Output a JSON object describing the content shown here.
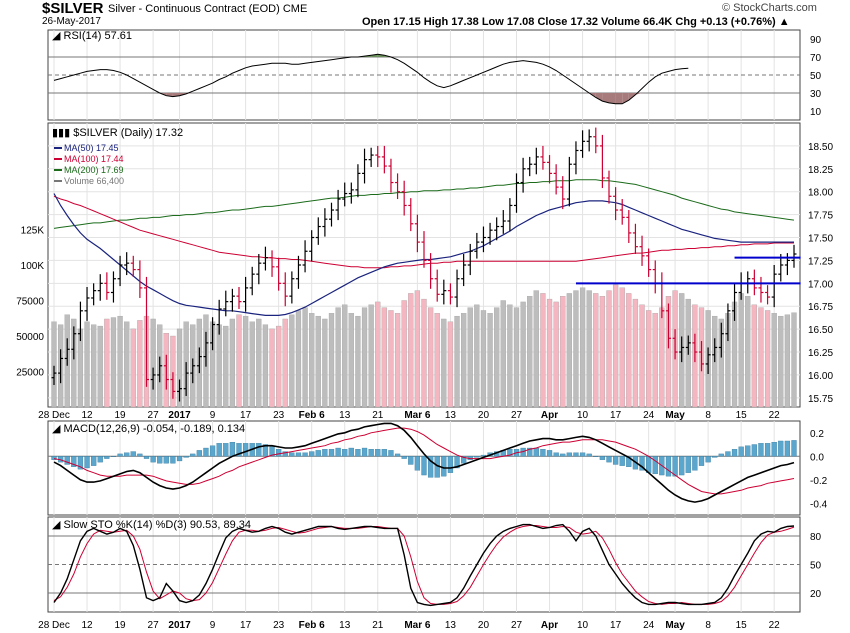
{
  "header": {
    "symbol": "$SILVER",
    "description": "Silver - Continuous Contract (EOD) CME",
    "date": "26-May-2017",
    "ohlc": "Open 17.15  High 17.38  Low 17.08  Close 17.32  Volume 66.4K  Chg +0.13 (+0.76%) ▲",
    "watermark": "© StockCharts.com"
  },
  "colors": {
    "up": "#000000",
    "down": "#cc0033",
    "ma50": "#1a237e",
    "ma100": "#cc0033",
    "ma200": "#1b6b1b",
    "vol_up": "#bdbdbd",
    "vol_down": "#f4b6c0",
    "macd_hist": "#5aa6cc",
    "rsi_fill_over": "#6b8f5a",
    "rsi_fill_under": "#a77b7b",
    "trendline": "#0000cc"
  },
  "chart_data": [
    {
      "panel": "rsi",
      "type": "line",
      "legend": "RSI(14) 57.61",
      "ylim": [
        0,
        100
      ],
      "y_ticks": [
        90,
        70,
        50,
        30,
        10
      ],
      "levels": [
        70,
        50,
        30
      ],
      "values": [
        44,
        46,
        48,
        50,
        52,
        54,
        55,
        56,
        56,
        55,
        53,
        50,
        46,
        42,
        38,
        34,
        30,
        27,
        26,
        27,
        29,
        32,
        35,
        38,
        41,
        45,
        48,
        52,
        55,
        58,
        60,
        61,
        62,
        63,
        63,
        63,
        62,
        62,
        63,
        64,
        65,
        66,
        67,
        68,
        69,
        70,
        70,
        71,
        72,
        73,
        72,
        70,
        67,
        63,
        58,
        53,
        47,
        42,
        38,
        36,
        38,
        41,
        44,
        47,
        50,
        53,
        56,
        59,
        62,
        64,
        65,
        66,
        65,
        64,
        62,
        59,
        55,
        50,
        45,
        40,
        35,
        30,
        25,
        21,
        19,
        18,
        18,
        22,
        28,
        35,
        42,
        48,
        52,
        54,
        56,
        57,
        57.61
      ]
    },
    {
      "panel": "price",
      "type": "ohlc",
      "title": "$SILVER (Daily) 17.32",
      "legend": [
        "MA(50) 17.45",
        "MA(100) 17.44",
        "MA(200) 17.69",
        "Volume 66,400"
      ],
      "ylim": [
        15.65,
        18.75
      ],
      "y_ticks": [
        18.5,
        18.25,
        18.0,
        17.75,
        17.5,
        17.25,
        17.0,
        16.75,
        16.5,
        16.25,
        16.0,
        15.75
      ],
      "x_labels": [
        "28 Dec",
        "12",
        "19",
        "27",
        "2017",
        "9",
        "17",
        "23",
        "Feb 6",
        "13",
        "21",
        "Mar 6",
        "13",
        "20",
        "27",
        "Apr",
        "10",
        "17",
        "24",
        "May",
        "8",
        "15",
        "22"
      ],
      "x_label_index": [
        0,
        5,
        10,
        15,
        19,
        24,
        29,
        34,
        39,
        44,
        49,
        55,
        60,
        65,
        70,
        75,
        80,
        85,
        90,
        94,
        99,
        104,
        109
      ],
      "close": [
        16.02,
        16.18,
        16.28,
        16.45,
        16.7,
        16.84,
        16.92,
        17.0,
        16.9,
        17.05,
        17.2,
        17.22,
        17.15,
        16.95,
        15.95,
        16.0,
        16.1,
        15.95,
        15.82,
        15.85,
        16.02,
        16.1,
        16.2,
        16.35,
        16.55,
        16.72,
        16.8,
        16.86,
        16.8,
        16.95,
        17.1,
        17.22,
        17.28,
        17.18,
        17.0,
        16.86,
        17.05,
        17.2,
        17.35,
        17.5,
        17.62,
        17.7,
        17.8,
        17.92,
        17.98,
        18.02,
        18.2,
        18.35,
        18.4,
        18.38,
        18.28,
        18.1,
        18.0,
        17.85,
        17.65,
        17.45,
        17.25,
        17.05,
        16.88,
        16.92,
        16.85,
        17.05,
        17.2,
        17.35,
        17.45,
        17.5,
        17.58,
        17.62,
        17.68,
        17.85,
        18.1,
        18.25,
        18.3,
        18.38,
        18.32,
        18.2,
        18.05,
        17.92,
        18.3,
        18.45,
        18.55,
        18.6,
        18.5,
        18.15,
        17.95,
        17.8,
        17.72,
        17.55,
        17.4,
        17.3,
        17.15,
        17.0,
        16.7,
        16.4,
        16.25,
        16.3,
        16.35,
        16.25,
        16.12,
        16.22,
        16.3,
        16.45,
        16.7,
        16.9,
        17.0,
        17.05,
        16.95,
        16.9,
        16.85,
        17.1,
        17.2,
        17.25,
        17.32
      ],
      "ma50": [
        17.98,
        17.85,
        17.74,
        17.64,
        17.55,
        17.48,
        17.43,
        17.38,
        17.32,
        17.26,
        17.2,
        17.14,
        17.08,
        17.02,
        16.97,
        16.93,
        16.89,
        16.85,
        16.81,
        16.78,
        16.76,
        16.75,
        16.74,
        16.73,
        16.72,
        16.71,
        16.7,
        16.7,
        16.69,
        16.68,
        16.67,
        16.66,
        16.65,
        16.65,
        16.65,
        16.66,
        16.68,
        16.71,
        16.74,
        16.78,
        16.82,
        16.86,
        16.9,
        16.94,
        16.98,
        17.02,
        17.06,
        17.09,
        17.12,
        17.15,
        17.18,
        17.2,
        17.22,
        17.23,
        17.24,
        17.25,
        17.26,
        17.26,
        17.27,
        17.28,
        17.29,
        17.31,
        17.33,
        17.35,
        17.38,
        17.41,
        17.45,
        17.49,
        17.53,
        17.57,
        17.62,
        17.66,
        17.7,
        17.74,
        17.77,
        17.8,
        17.82,
        17.84,
        17.86,
        17.88,
        17.89,
        17.9,
        17.9,
        17.9,
        17.89,
        17.88,
        17.86,
        17.83,
        17.8,
        17.77,
        17.74,
        17.71,
        17.68,
        17.65,
        17.62,
        17.59,
        17.57,
        17.55,
        17.53,
        17.51,
        17.49,
        17.48,
        17.47,
        17.46,
        17.45,
        17.45,
        17.45,
        17.45,
        17.45,
        17.45,
        17.45,
        17.45,
        17.45
      ],
      "ma100": [
        17.95,
        17.92,
        17.9,
        17.87,
        17.85,
        17.82,
        17.79,
        17.76,
        17.73,
        17.7,
        17.67,
        17.64,
        17.61,
        17.58,
        17.56,
        17.54,
        17.52,
        17.5,
        17.48,
        17.46,
        17.44,
        17.42,
        17.4,
        17.38,
        17.36,
        17.34,
        17.33,
        17.32,
        17.31,
        17.3,
        17.29,
        17.29,
        17.28,
        17.28,
        17.27,
        17.27,
        17.26,
        17.26,
        17.25,
        17.24,
        17.23,
        17.22,
        17.21,
        17.2,
        17.19,
        17.18,
        17.18,
        17.17,
        17.17,
        17.17,
        17.17,
        17.18,
        17.18,
        17.19,
        17.19,
        17.2,
        17.21,
        17.22,
        17.22,
        17.23,
        17.23,
        17.24,
        17.24,
        17.24,
        17.24,
        17.24,
        17.24,
        17.24,
        17.24,
        17.24,
        17.24,
        17.24,
        17.24,
        17.24,
        17.24,
        17.24,
        17.24,
        17.24,
        17.24,
        17.24,
        17.25,
        17.26,
        17.27,
        17.28,
        17.29,
        17.3,
        17.31,
        17.32,
        17.33,
        17.33,
        17.34,
        17.35,
        17.36,
        17.36,
        17.37,
        17.37,
        17.38,
        17.38,
        17.39,
        17.39,
        17.4,
        17.4,
        17.41,
        17.41,
        17.42,
        17.42,
        17.43,
        17.43,
        17.43,
        17.44,
        17.44,
        17.44,
        17.44
      ],
      "ma200": [
        17.6,
        17.61,
        17.62,
        17.63,
        17.64,
        17.65,
        17.66,
        17.66,
        17.67,
        17.68,
        17.69,
        17.69,
        17.7,
        17.71,
        17.71,
        17.72,
        17.72,
        17.73,
        17.74,
        17.74,
        17.75,
        17.75,
        17.76,
        17.77,
        17.77,
        17.78,
        17.79,
        17.8,
        17.8,
        17.81,
        17.82,
        17.83,
        17.84,
        17.84,
        17.85,
        17.86,
        17.87,
        17.88,
        17.89,
        17.9,
        17.91,
        17.92,
        17.93,
        17.93,
        17.94,
        17.95,
        17.96,
        17.96,
        17.97,
        17.97,
        17.98,
        17.98,
        17.99,
        17.99,
        18.0,
        18.0,
        18.01,
        18.01,
        18.01,
        18.02,
        18.02,
        18.03,
        18.03,
        18.04,
        18.04,
        18.05,
        18.06,
        18.07,
        18.07,
        18.08,
        18.09,
        18.09,
        18.1,
        18.1,
        18.11,
        18.11,
        18.12,
        18.12,
        18.12,
        18.13,
        18.13,
        18.13,
        18.13,
        18.12,
        18.12,
        18.11,
        18.1,
        18.09,
        18.08,
        18.06,
        18.04,
        18.02,
        18.0,
        17.98,
        17.96,
        17.93,
        17.91,
        17.89,
        17.87,
        17.85,
        17.83,
        17.81,
        17.8,
        17.78,
        17.77,
        17.76,
        17.75,
        17.74,
        17.73,
        17.72,
        17.71,
        17.7,
        17.69
      ],
      "trendlines": [
        {
          "from_index": 79,
          "to_index": 113,
          "value": 17.0
        },
        {
          "from_index": 103,
          "to_index": 113,
          "value": 17.28
        }
      ],
      "volume": {
        "ylim": [
          0,
          200000
        ],
        "y_ticks": [
          25000,
          50000,
          75000,
          100000,
          125000
        ],
        "y_tick_labels": [
          "25000",
          "50000",
          "75000",
          "100K",
          "125K"
        ],
        "values": [
          60000,
          58000,
          65000,
          62000,
          55000,
          60000,
          58000,
          57000,
          62000,
          63000,
          64000,
          60000,
          55000,
          61000,
          64000,
          62000,
          58000,
          52000,
          50000,
          55000,
          60000,
          58000,
          62000,
          65000,
          60000,
          58000,
          57000,
          62000,
          65000,
          64000,
          60000,
          62000,
          58000,
          55000,
          57000,
          62000,
          65000,
          68000,
          70000,
          66000,
          64000,
          62000,
          66000,
          70000,
          72000,
          66000,
          64000,
          70000,
          72000,
          74000,
          70000,
          68000,
          66000,
          75000,
          80000,
          82000,
          76000,
          70000,
          66000,
          62000,
          60000,
          64000,
          66000,
          70000,
          72000,
          68000,
          66000,
          70000,
          75000,
          72000,
          70000,
          74000,
          78000,
          82000,
          80000,
          76000,
          74000,
          78000,
          80000,
          82000,
          84000,
          82000,
          80000,
          78000,
          82000,
          86000,
          84000,
          80000,
          76000,
          72000,
          68000,
          66000,
          70000,
          78000,
          82000,
          80000,
          76000,
          72000,
          70000,
          68000,
          64000,
          62000,
          66000,
          74000,
          80000,
          78000,
          72000,
          70000,
          68000,
          66000,
          64000,
          65000,
          66400
        ]
      }
    },
    {
      "panel": "macd",
      "type": "line",
      "legend": "MACD(12,26,9) -0.054, -0.189, 0.134",
      "ylim": [
        -0.5,
        0.3
      ],
      "y_ticks": [
        0.2,
        0.0,
        -0.2,
        -0.4
      ],
      "macd": [
        -0.05,
        -0.08,
        -0.12,
        -0.16,
        -0.2,
        -0.22,
        -0.22,
        -0.21,
        -0.19,
        -0.17,
        -0.15,
        -0.13,
        -0.12,
        -0.14,
        -0.18,
        -0.22,
        -0.25,
        -0.27,
        -0.28,
        -0.27,
        -0.25,
        -0.22,
        -0.18,
        -0.14,
        -0.1,
        -0.06,
        -0.03,
        0.0,
        0.02,
        0.04,
        0.06,
        0.08,
        0.09,
        0.09,
        0.08,
        0.07,
        0.07,
        0.08,
        0.09,
        0.11,
        0.13,
        0.15,
        0.17,
        0.19,
        0.2,
        0.22,
        0.23,
        0.25,
        0.26,
        0.27,
        0.28,
        0.28,
        0.26,
        0.22,
        0.16,
        0.09,
        0.02,
        -0.04,
        -0.08,
        -0.1,
        -0.1,
        -0.09,
        -0.07,
        -0.05,
        -0.03,
        -0.01,
        0.01,
        0.03,
        0.05,
        0.07,
        0.09,
        0.11,
        0.13,
        0.14,
        0.15,
        0.15,
        0.14,
        0.14,
        0.15,
        0.16,
        0.17,
        0.16,
        0.14,
        0.11,
        0.08,
        0.05,
        0.02,
        -0.01,
        -0.05,
        -0.09,
        -0.14,
        -0.19,
        -0.24,
        -0.29,
        -0.33,
        -0.36,
        -0.38,
        -0.39,
        -0.38,
        -0.36,
        -0.33,
        -0.3,
        -0.27,
        -0.24,
        -0.21,
        -0.18,
        -0.16,
        -0.14,
        -0.12,
        -0.1,
        -0.08,
        -0.07,
        -0.054
      ],
      "signal": [
        -0.02,
        -0.03,
        -0.05,
        -0.07,
        -0.09,
        -0.12,
        -0.14,
        -0.16,
        -0.17,
        -0.17,
        -0.17,
        -0.16,
        -0.16,
        -0.16,
        -0.16,
        -0.17,
        -0.19,
        -0.21,
        -0.22,
        -0.23,
        -0.24,
        -0.24,
        -0.23,
        -0.21,
        -0.19,
        -0.17,
        -0.14,
        -0.12,
        -0.09,
        -0.07,
        -0.05,
        -0.03,
        -0.01,
        0.01,
        0.02,
        0.03,
        0.04,
        0.05,
        0.06,
        0.07,
        0.08,
        0.09,
        0.11,
        0.12,
        0.14,
        0.15,
        0.17,
        0.18,
        0.2,
        0.21,
        0.22,
        0.23,
        0.24,
        0.24,
        0.23,
        0.21,
        0.18,
        0.14,
        0.1,
        0.07,
        0.04,
        0.01,
        -0.01,
        -0.02,
        -0.02,
        -0.02,
        -0.02,
        -0.01,
        0.0,
        0.01,
        0.03,
        0.04,
        0.06,
        0.07,
        0.09,
        0.1,
        0.11,
        0.12,
        0.12,
        0.13,
        0.14,
        0.14,
        0.14,
        0.14,
        0.13,
        0.12,
        0.1,
        0.08,
        0.06,
        0.03,
        0.0,
        -0.04,
        -0.08,
        -0.12,
        -0.16,
        -0.2,
        -0.24,
        -0.27,
        -0.3,
        -0.31,
        -0.32,
        -0.32,
        -0.31,
        -0.3,
        -0.29,
        -0.27,
        -0.26,
        -0.25,
        -0.23,
        -0.22,
        -0.21,
        -0.2,
        -0.189
      ]
    },
    {
      "panel": "sto",
      "type": "line",
      "legend": "Slow STO %K(14) %D(3) 90.53, 89.34",
      "ylim": [
        0,
        100
      ],
      "y_ticks": [
        80,
        50,
        20
      ],
      "levels": [
        80,
        50,
        20
      ],
      "k": [
        10,
        20,
        35,
        55,
        75,
        85,
        88,
        85,
        82,
        84,
        88,
        85,
        70,
        45,
        15,
        12,
        15,
        30,
        22,
        12,
        10,
        12,
        18,
        30,
        45,
        62,
        78,
        85,
        88,
        86,
        84,
        85,
        88,
        90,
        88,
        84,
        82,
        84,
        86,
        88,
        90,
        90,
        90,
        88,
        87,
        88,
        89,
        90,
        90,
        89,
        88,
        88,
        88,
        60,
        25,
        10,
        8,
        7,
        8,
        9,
        10,
        15,
        25,
        38,
        50,
        62,
        72,
        80,
        85,
        88,
        90,
        92,
        92,
        90,
        88,
        89,
        91,
        92,
        85,
        75,
        85,
        88,
        80,
        65,
        50,
        40,
        30,
        22,
        15,
        10,
        8,
        8,
        9,
        10,
        10,
        9,
        8,
        8,
        8,
        9,
        10,
        15,
        25,
        38,
        50,
        62,
        75,
        82,
        85,
        84,
        88,
        90,
        90.53
      ],
      "d": [
        12,
        16,
        26,
        40,
        58,
        72,
        82,
        86,
        85,
        84,
        85,
        86,
        80,
        66,
        42,
        22,
        14,
        18,
        22,
        20,
        14,
        12,
        13,
        20,
        31,
        46,
        61,
        75,
        84,
        86,
        86,
        85,
        86,
        88,
        89,
        87,
        85,
        83,
        84,
        86,
        88,
        89,
        90,
        89,
        88,
        88,
        88,
        89,
        90,
        90,
        89,
        88,
        88,
        80,
        58,
        32,
        15,
        9,
        8,
        8,
        9,
        11,
        17,
        26,
        38,
        50,
        61,
        71,
        79,
        84,
        88,
        90,
        91,
        91,
        90,
        89,
        89,
        90,
        89,
        84,
        82,
        83,
        85,
        78,
        66,
        52,
        40,
        31,
        22,
        16,
        11,
        9,
        8,
        9,
        9,
        10,
        9,
        8,
        8,
        8,
        9,
        11,
        17,
        26,
        38,
        50,
        62,
        73,
        81,
        84,
        85,
        87,
        89.34
      ]
    }
  ]
}
